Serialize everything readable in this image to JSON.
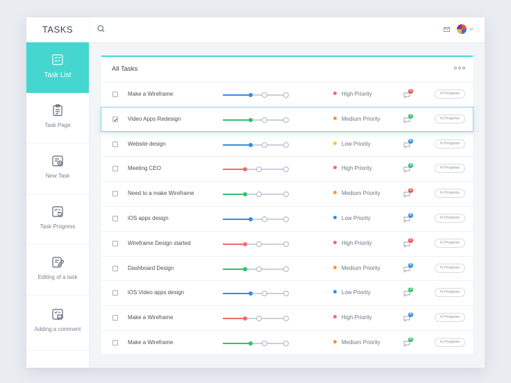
{
  "sidebar": {
    "logo": "TASKS",
    "items": [
      {
        "label": "Task List",
        "icon": "task-list-icon",
        "active": true
      },
      {
        "label": "Task Page",
        "icon": "task-page-icon"
      },
      {
        "label": "New Task",
        "icon": "new-task-icon"
      },
      {
        "label": "Task Progress",
        "icon": "task-progress-icon"
      },
      {
        "label": "Editing of a task",
        "icon": "edit-task-icon"
      },
      {
        "label": "Adding a comment",
        "icon": "add-comment-icon"
      }
    ]
  },
  "topbar": {
    "search_icon": "search-icon",
    "mail_icon": "mail-icon",
    "avatar_icon": "avatar"
  },
  "panel": {
    "title": "All Tasks",
    "more_icon": "more-dots-icon"
  },
  "colors": {
    "accent": "#45d6cf",
    "blue": "#2f8de4",
    "green": "#2ec26a",
    "red": "#f06a6a",
    "orange": "#f3953d",
    "yellow": "#f5c431",
    "badge_red": "#f0504f",
    "badge_green": "#2ec26a",
    "badge_blue": "#2f8de4"
  },
  "tasks": [
    {
      "name": "Make a Wireframe",
      "checked": false,
      "progress_color": "blue",
      "progress_step": 2,
      "priority": "High Priority",
      "priority_color": "red",
      "badge": "5",
      "badge_color": "badge_red",
      "status": "In Progress"
    },
    {
      "name": "Video Apps Redesign",
      "checked": true,
      "selected": true,
      "progress_color": "green",
      "progress_step": 2,
      "priority": "Medium Priority",
      "priority_color": "orange",
      "badge": "3",
      "badge_color": "badge_green",
      "status": "In Progress"
    },
    {
      "name": "Website design",
      "checked": false,
      "progress_color": "blue",
      "progress_step": 2,
      "priority": "Low Priority",
      "priority_color": "yellow",
      "badge": "6",
      "badge_color": "badge_blue",
      "status": "In Progress"
    },
    {
      "name": "Meeting CEO",
      "checked": false,
      "progress_color": "red",
      "progress_step": 1,
      "priority": "High Priority",
      "priority_color": "red",
      "badge": "3",
      "badge_color": "badge_green",
      "status": "In Progress"
    },
    {
      "name": "Need to a make Wireframe",
      "checked": false,
      "progress_color": "green",
      "progress_step": 1,
      "priority": "Medium Priority",
      "priority_color": "orange",
      "badge": "5",
      "badge_color": "badge_red",
      "status": "In Progress"
    },
    {
      "name": "iOS apps design",
      "checked": false,
      "progress_color": "blue",
      "progress_step": 2,
      "priority": "Low Priority",
      "priority_color": "blue",
      "badge": "6",
      "badge_color": "badge_blue",
      "status": "In Progress"
    },
    {
      "name": "Wireframe Design started",
      "checked": false,
      "progress_color": "red",
      "progress_step": 1,
      "priority": "High Priority",
      "priority_color": "red",
      "badge": "5",
      "badge_color": "badge_red",
      "status": "In Progress"
    },
    {
      "name": "Dashboard Design",
      "checked": false,
      "progress_color": "green",
      "progress_step": 1,
      "priority": "Medium Priority",
      "priority_color": "orange",
      "badge": "6",
      "badge_color": "badge_blue",
      "status": "In Progress"
    },
    {
      "name": "iOS Video apps design",
      "checked": false,
      "progress_color": "blue",
      "progress_step": 2,
      "priority": "Low Priority",
      "priority_color": "blue",
      "badge": "3",
      "badge_color": "badge_green",
      "status": "In Progress"
    },
    {
      "name": "Make a Wireframe",
      "checked": false,
      "progress_color": "red",
      "progress_step": 1,
      "priority": "High Priority",
      "priority_color": "red",
      "badge": "6",
      "badge_color": "badge_blue",
      "status": "In Progress"
    },
    {
      "name": "Make a Wireframe",
      "checked": false,
      "progress_color": "green",
      "progress_step": 2,
      "priority": "Medium Priority",
      "priority_color": "orange",
      "badge": "6",
      "badge_color": "badge_green",
      "status": "In Progress"
    }
  ]
}
